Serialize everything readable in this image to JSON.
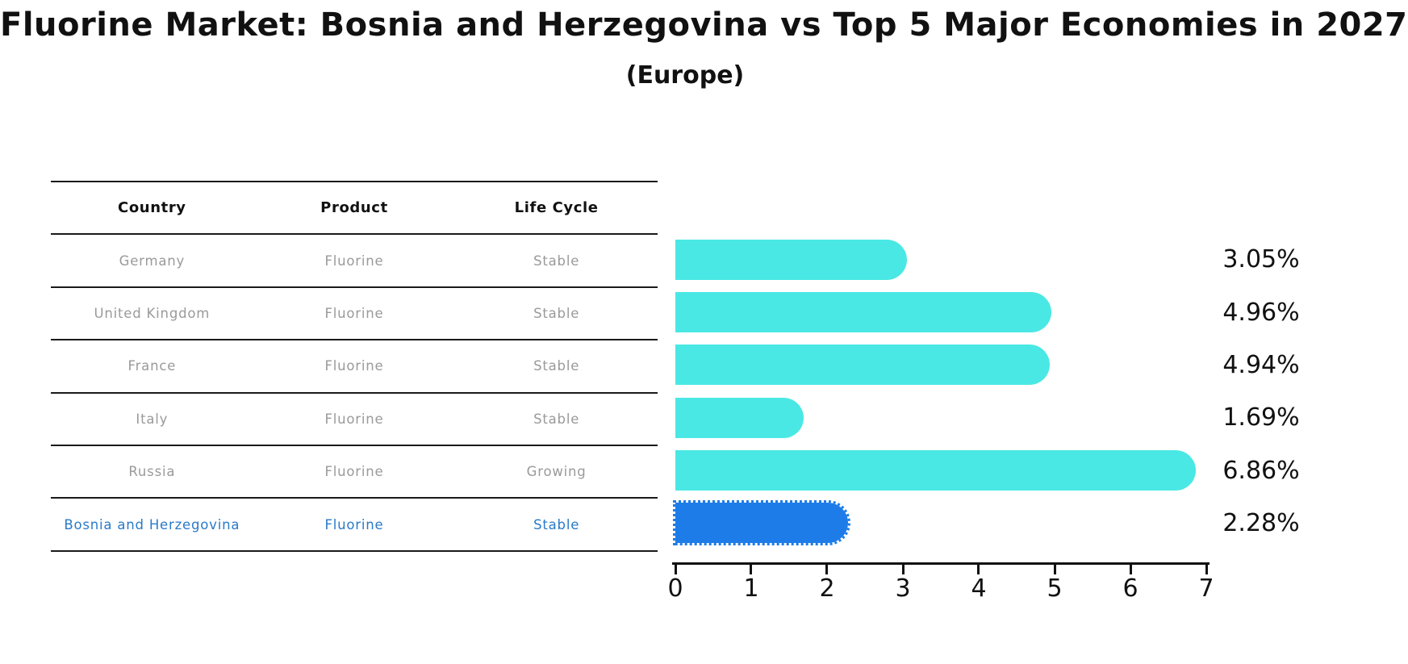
{
  "title": "Fluorine Market: Bosnia and Herzegovina vs Top 5 Major Economies in 2027",
  "subtitle": "(Europe)",
  "table": {
    "columns": [
      "Country",
      "Product",
      "Life Cycle"
    ],
    "rows": [
      {
        "country": "Germany",
        "product": "Fluorine",
        "life_cycle": "Stable"
      },
      {
        "country": "United Kingdom",
        "product": "Fluorine",
        "life_cycle": "Stable"
      },
      {
        "country": "France",
        "product": "Fluorine",
        "life_cycle": "Stable"
      },
      {
        "country": "Italy",
        "product": "Fluorine",
        "life_cycle": "Stable"
      },
      {
        "country": "Russia",
        "product": "Fluorine",
        "life_cycle": "Growing"
      },
      {
        "country": "Bosnia and Herzegovina",
        "product": "Fluorine",
        "life_cycle": "Stable"
      }
    ],
    "highlighted_row": "Bosnia and Herzegovina"
  },
  "chart_data": {
    "type": "bar",
    "orientation": "horizontal",
    "title": "Fluorine Market: Bosnia and Herzegovina vs Top 5 Major Economies in 2027",
    "subtitle": "(Europe)",
    "categories": [
      "Germany",
      "United Kingdom",
      "France",
      "Italy",
      "Russia",
      "Bosnia and Herzegovina"
    ],
    "values": [
      3.05,
      4.96,
      4.94,
      1.69,
      6.86,
      2.28
    ],
    "labels": [
      "3.05%",
      "4.96%",
      "4.94%",
      "1.69%",
      "6.86%",
      "2.28%"
    ],
    "xlim": [
      0,
      7
    ],
    "x_ticks": [
      "0",
      "1",
      "2",
      "3",
      "4",
      "5",
      "6",
      "7"
    ],
    "grid": false,
    "legend": false,
    "bar_color": "#4AE8E4",
    "highlight_color": "#1E7CE8",
    "highlight_index": 5
  },
  "colors": {
    "bar_cyan": "#4AE8E4",
    "bar_blue": "#1E7CE8",
    "highlight_text": "#2A7AC8",
    "table_text_gray": "#9a9a9a",
    "text_black": "#111111",
    "rule_line": "#1a1a1a"
  }
}
